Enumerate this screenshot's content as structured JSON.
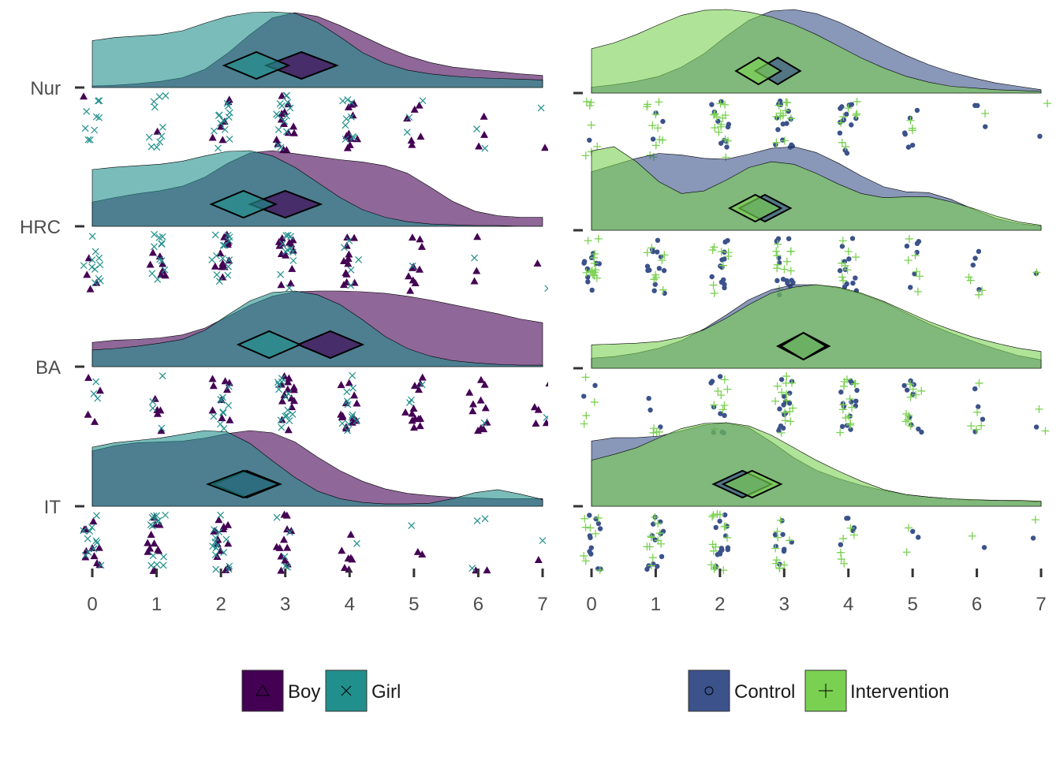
{
  "chart_data": [
    {
      "type": "raincloud",
      "categories": [
        "Nur",
        "HRC",
        "BA",
        "IT"
      ],
      "x_ticks": [
        "0",
        "1",
        "2",
        "3",
        "4",
        "5",
        "6",
        "7"
      ],
      "xlim": [
        0,
        7
      ],
      "grid": false,
      "series": [
        {
          "name": "Boy",
          "color": "#440154",
          "fill_opacity": 0.6,
          "shape": "triangle",
          "groups": {
            "Nur": {
              "mean": 3.25,
              "ci": 0.55,
              "density": [
                0.02,
                0.03,
                0.05,
                0.08,
                0.13,
                0.24,
                0.45,
                0.7,
                0.92,
                0.99,
                0.94,
                0.82,
                0.68,
                0.54,
                0.42,
                0.33,
                0.27,
                0.24,
                0.21,
                0.18,
                0.16
              ]
            },
            "HRC": {
              "mean": 3.0,
              "ci": 0.55,
              "density": [
                0.32,
                0.38,
                0.43,
                0.47,
                0.53,
                0.65,
                0.83,
                0.97,
                1.0,
                0.96,
                0.92,
                0.88,
                0.85,
                0.8,
                0.7,
                0.52,
                0.33,
                0.2,
                0.14,
                0.12,
                0.12
              ]
            },
            "BA": {
              "mean": 3.7,
              "ci": 0.5,
              "density": [
                0.32,
                0.35,
                0.36,
                0.38,
                0.42,
                0.51,
                0.66,
                0.81,
                0.93,
                0.99,
                1.0,
                1.0,
                0.99,
                0.97,
                0.93,
                0.88,
                0.82,
                0.76,
                0.7,
                0.63,
                0.58
              ]
            },
            "IT": {
              "mean": 2.4,
              "ci": 0.52,
              "density": [
                0.73,
                0.8,
                0.84,
                0.85,
                0.86,
                0.9,
                0.96,
                1.0,
                0.97,
                0.85,
                0.65,
                0.47,
                0.33,
                0.23,
                0.17,
                0.14,
                0.12,
                0.11,
                0.1,
                0.1,
                0.1
              ]
            }
          }
        },
        {
          "name": "Girl",
          "color": "#21908c",
          "fill_opacity": 0.6,
          "shape": "x",
          "groups": {
            "Nur": {
              "mean": 2.55,
              "ci": 0.5,
              "density": [
                0.62,
                0.66,
                0.68,
                0.7,
                0.75,
                0.85,
                0.94,
                0.99,
                1.0,
                0.98,
                0.86,
                0.67,
                0.46,
                0.32,
                0.23,
                0.18,
                0.15,
                0.13,
                0.12,
                0.11,
                0.1
              ]
            },
            "HRC": {
              "mean": 2.35,
              "ci": 0.5,
              "density": [
                0.75,
                0.78,
                0.8,
                0.82,
                0.86,
                0.93,
                0.99,
                1.0,
                0.93,
                0.78,
                0.58,
                0.38,
                0.22,
                0.12,
                0.06,
                0.03,
                0.02,
                0.01,
                0.01,
                0.0,
                0.0
              ]
            },
            "BA": {
              "mean": 2.75,
              "ci": 0.48,
              "density": [
                0.22,
                0.24,
                0.27,
                0.31,
                0.36,
                0.48,
                0.68,
                0.87,
                0.98,
                1.0,
                0.95,
                0.82,
                0.62,
                0.4,
                0.24,
                0.14,
                0.08,
                0.05,
                0.03,
                0.02,
                0.02
              ]
            },
            "IT": {
              "mean": 2.35,
              "ci": 0.55,
              "density": [
                0.78,
                0.84,
                0.87,
                0.9,
                0.95,
                1.0,
                0.98,
                0.83,
                0.6,
                0.38,
                0.2,
                0.1,
                0.05,
                0.03,
                0.03,
                0.04,
                0.1,
                0.18,
                0.22,
                0.16,
                0.09
              ]
            }
          }
        }
      ],
      "legend": {
        "position": "bottom",
        "entries": [
          "Boy",
          "Girl"
        ]
      }
    },
    {
      "type": "raincloud",
      "categories": [
        "Nur",
        "HRC",
        "BA",
        "IT"
      ],
      "x_ticks": [
        "0",
        "1",
        "2",
        "3",
        "4",
        "5",
        "6",
        "7"
      ],
      "xlim": [
        0,
        7
      ],
      "grid": false,
      "series": [
        {
          "name": "Control",
          "color": "#3b528b",
          "fill_opacity": 0.6,
          "shape": "circle",
          "groups": {
            "Nur": {
              "mean": 2.9,
              "ci": 0.35,
              "density": [
                0.07,
                0.1,
                0.14,
                0.2,
                0.31,
                0.47,
                0.68,
                0.87,
                0.98,
                1.0,
                0.95,
                0.85,
                0.72,
                0.58,
                0.45,
                0.34,
                0.25,
                0.18,
                0.12,
                0.08,
                0.04
              ]
            },
            "HRC": {
              "mean": 2.7,
              "ci": 0.4,
              "density": [
                0.7,
                0.78,
                0.86,
                0.92,
                0.9,
                0.86,
                0.85,
                0.91,
                0.98,
                1.0,
                0.93,
                0.8,
                0.65,
                0.52,
                0.46,
                0.45,
                0.37,
                0.25,
                0.14,
                0.08,
                0.05
              ]
            },
            "BA": {
              "mean": 3.3,
              "ci": 0.4,
              "density": [
                0.12,
                0.14,
                0.18,
                0.24,
                0.33,
                0.47,
                0.64,
                0.82,
                0.94,
                1.0,
                1.0,
                0.96,
                0.89,
                0.79,
                0.66,
                0.53,
                0.42,
                0.32,
                0.23,
                0.15,
                0.1
              ]
            },
            "IT": {
              "mean": 2.35,
              "ci": 0.45,
              "density": [
                0.78,
                0.82,
                0.82,
                0.84,
                0.9,
                0.97,
                1.0,
                0.94,
                0.77,
                0.58,
                0.43,
                0.33,
                0.25,
                0.19,
                0.14,
                0.11,
                0.09,
                0.07,
                0.07,
                0.06,
                0.05
              ]
            }
          }
        },
        {
          "name": "Intervention",
          "color": "#7ad151",
          "fill_opacity": 0.6,
          "shape": "plus",
          "groups": {
            "Nur": {
              "mean": 2.6,
              "ci": 0.35,
              "density": [
                0.53,
                0.6,
                0.7,
                0.82,
                0.93,
                0.99,
                1.0,
                0.97,
                0.91,
                0.82,
                0.7,
                0.56,
                0.42,
                0.3,
                0.2,
                0.13,
                0.08,
                0.06,
                0.04,
                0.03,
                0.02
              ]
            },
            "HRC": {
              "mean": 2.55,
              "ci": 0.4,
              "density": [
                0.95,
                1.0,
                0.82,
                0.58,
                0.44,
                0.47,
                0.6,
                0.75,
                0.82,
                0.79,
                0.68,
                0.55,
                0.44,
                0.39,
                0.4,
                0.4,
                0.34,
                0.26,
                0.17,
                0.1,
                0.06
              ]
            },
            "BA": {
              "mean": 3.3,
              "ci": 0.35,
              "density": [
                0.28,
                0.29,
                0.3,
                0.32,
                0.37,
                0.46,
                0.6,
                0.76,
                0.9,
                0.97,
                1.0,
                0.97,
                0.9,
                0.8,
                0.68,
                0.56,
                0.46,
                0.37,
                0.3,
                0.24,
                0.2
              ]
            },
            "IT": {
              "mean": 2.5,
              "ci": 0.45,
              "density": [
                0.55,
                0.62,
                0.7,
                0.82,
                0.93,
                0.99,
                1.0,
                0.96,
                0.85,
                0.7,
                0.55,
                0.42,
                0.3,
                0.2,
                0.14,
                0.11,
                0.09,
                0.08,
                0.07,
                0.07,
                0.06
              ]
            }
          }
        }
      ],
      "legend": {
        "position": "bottom",
        "entries": [
          "Control",
          "Intervention"
        ]
      }
    }
  ]
}
